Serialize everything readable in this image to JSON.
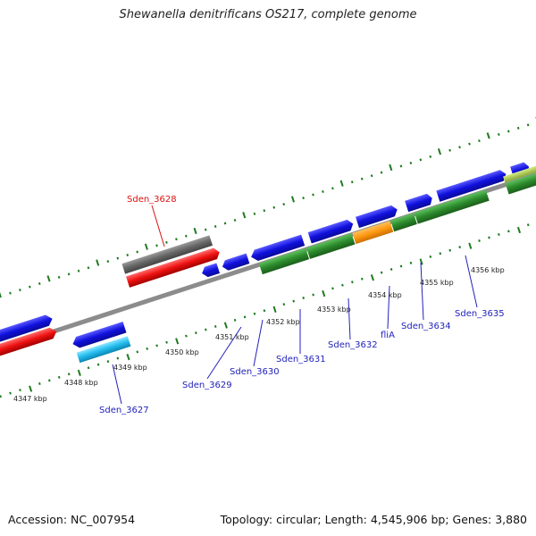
{
  "title": "Shewanella denitrificans OS217, complete genome",
  "footer": {
    "accession": "Accession: NC_007954",
    "summary": "Topology: circular; Length: 4,545,906 bp; Genes: 3,880"
  },
  "colors": {
    "blue": "#1010dd",
    "red": "#ee1111",
    "dark_gray": "#666666",
    "green": "#2b8a2b",
    "orange": "#ff9910",
    "cyan": "#22bbee",
    "olive": "#99bb44",
    "label_blue": "#2222bb",
    "label_red": "#dd1111",
    "tick_green": "#1f7a1f"
  },
  "kbp_ticks": [
    "4347 kbp",
    "4348 kbp",
    "4349 kbp",
    "4350 kbp",
    "4351 kbp",
    "4352 kbp",
    "4353 kbp",
    "4354 kbp",
    "4355 kbp",
    "4356 kbp"
  ],
  "gene_labels": [
    {
      "text": "Sden_3628",
      "color": "red"
    },
    {
      "text": "Sden_3627",
      "color": "blue"
    },
    {
      "text": "Sden_3629",
      "color": "blue"
    },
    {
      "text": "Sden_3630",
      "color": "blue"
    },
    {
      "text": "Sden_3631",
      "color": "blue"
    },
    {
      "text": "Sden_3632",
      "color": "blue"
    },
    {
      "text": "fliA",
      "color": "blue"
    },
    {
      "text": "Sden_3634",
      "color": "blue"
    },
    {
      "text": "Sden_3635",
      "color": "blue"
    }
  ]
}
